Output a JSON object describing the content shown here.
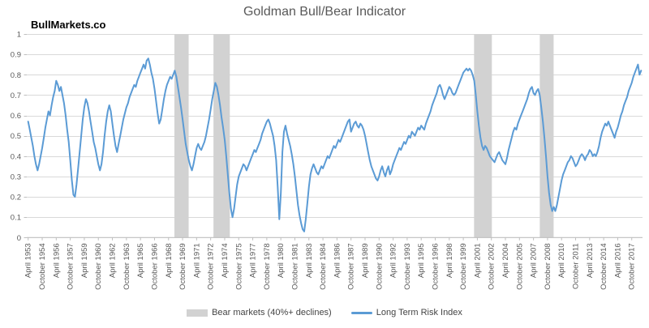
{
  "page": {
    "watermark": "BullMarkets.co"
  },
  "chart_data": {
    "type": "line",
    "title": "Goldman Bull/Bear Indicator",
    "xlabel": "",
    "ylabel": "",
    "ylim": [
      0,
      1
    ],
    "x_domain": [
      1953.1,
      2018.9
    ],
    "grid": "horizontal",
    "legend_position": "bottom",
    "colors": {
      "line": "#5B9BD5",
      "band": "#D2D2D2",
      "gridline": "#D9D9D9",
      "axis": "#BFBFBF",
      "tick_text": "#595959",
      "title_text": "#595959"
    },
    "y_tick_labels": [
      "1",
      "0.9",
      "0.8",
      "0.7",
      "0.6",
      "0.5",
      "0.4",
      "0.3",
      "0.2",
      "0.1",
      "0"
    ],
    "y_tick_values": [
      1,
      0.9,
      0.8,
      0.7,
      0.6,
      0.5,
      0.4,
      0.3,
      0.2,
      0.1,
      0
    ],
    "x_tick_start": 1953.25,
    "x_tick_step_years": 1.5,
    "x_tick_labels": [
      "April 1953",
      "October 1954",
      "April 1956",
      "October 1957",
      "April 1959",
      "October 1960",
      "April 1962",
      "October 1963",
      "April 1965",
      "October 1966",
      "April 1968",
      "October 1969",
      "April 1971",
      "October 1972",
      "April 1974",
      "October 1975",
      "April 1977",
      "October 1978",
      "April 1980",
      "October 1981",
      "April 1983",
      "October 1984",
      "April 1986",
      "October 1987",
      "April 1989",
      "October 1990",
      "April 1992",
      "October 1993",
      "April 1995",
      "October 1996",
      "April 1998",
      "October 1999",
      "April 2001",
      "October 2002",
      "April 2004",
      "October 2005",
      "April 2007",
      "October 2008",
      "April 2010",
      "October 2011",
      "April 2013",
      "October 2014",
      "April 2016",
      "October 2017"
    ],
    "bands": {
      "label": "Bear markets (40%+ declines)",
      "color": "#D2D2D2",
      "ranges": [
        [
          1968.88,
          1970.4
        ],
        [
          1973.05,
          1974.8
        ],
        [
          2000.9,
          2002.8
        ],
        [
          2007.92,
          2009.4
        ]
      ]
    },
    "series": [
      {
        "name": "Long Term Risk Index",
        "color": "#5B9BD5",
        "t_start": 1953.25,
        "t_step_years": 0.1666667,
        "values": [
          0.57,
          0.53,
          0.49,
          0.45,
          0.4,
          0.36,
          0.33,
          0.36,
          0.4,
          0.44,
          0.49,
          0.54,
          0.58,
          0.62,
          0.6,
          0.65,
          0.69,
          0.72,
          0.77,
          0.75,
          0.72,
          0.74,
          0.7,
          0.66,
          0.6,
          0.53,
          0.47,
          0.38,
          0.28,
          0.21,
          0.2,
          0.26,
          0.34,
          0.42,
          0.5,
          0.58,
          0.64,
          0.68,
          0.66,
          0.62,
          0.57,
          0.52,
          0.47,
          0.44,
          0.4,
          0.36,
          0.33,
          0.36,
          0.42,
          0.5,
          0.57,
          0.62,
          0.65,
          0.62,
          0.56,
          0.5,
          0.45,
          0.42,
          0.46,
          0.5,
          0.54,
          0.58,
          0.61,
          0.64,
          0.66,
          0.69,
          0.71,
          0.73,
          0.75,
          0.74,
          0.77,
          0.79,
          0.81,
          0.83,
          0.85,
          0.83,
          0.87,
          0.88,
          0.85,
          0.81,
          0.78,
          0.73,
          0.67,
          0.61,
          0.56,
          0.58,
          0.63,
          0.68,
          0.72,
          0.75,
          0.77,
          0.79,
          0.78,
          0.8,
          0.82,
          0.79,
          0.74,
          0.69,
          0.64,
          0.58,
          0.52,
          0.46,
          0.42,
          0.38,
          0.35,
          0.33,
          0.36,
          0.4,
          0.44,
          0.46,
          0.44,
          0.43,
          0.45,
          0.47,
          0.5,
          0.54,
          0.58,
          0.63,
          0.68,
          0.72,
          0.76,
          0.74,
          0.7,
          0.65,
          0.59,
          0.54,
          0.48,
          0.4,
          0.31,
          0.22,
          0.14,
          0.1,
          0.14,
          0.2,
          0.26,
          0.3,
          0.32,
          0.34,
          0.36,
          0.35,
          0.33,
          0.35,
          0.37,
          0.39,
          0.41,
          0.43,
          0.42,
          0.44,
          0.46,
          0.48,
          0.51,
          0.53,
          0.55,
          0.57,
          0.58,
          0.56,
          0.53,
          0.5,
          0.45,
          0.38,
          0.25,
          0.09,
          0.22,
          0.42,
          0.52,
          0.55,
          0.51,
          0.48,
          0.45,
          0.41,
          0.36,
          0.3,
          0.23,
          0.16,
          0.11,
          0.07,
          0.04,
          0.03,
          0.09,
          0.17,
          0.25,
          0.31,
          0.34,
          0.36,
          0.34,
          0.32,
          0.31,
          0.33,
          0.35,
          0.34,
          0.36,
          0.38,
          0.4,
          0.39,
          0.41,
          0.43,
          0.45,
          0.44,
          0.46,
          0.48,
          0.47,
          0.49,
          0.51,
          0.53,
          0.55,
          0.57,
          0.58,
          0.52,
          0.54,
          0.56,
          0.57,
          0.55,
          0.54,
          0.56,
          0.55,
          0.53,
          0.5,
          0.46,
          0.42,
          0.38,
          0.35,
          0.33,
          0.31,
          0.29,
          0.28,
          0.3,
          0.33,
          0.35,
          0.32,
          0.3,
          0.33,
          0.35,
          0.31,
          0.33,
          0.36,
          0.38,
          0.4,
          0.42,
          0.44,
          0.43,
          0.45,
          0.47,
          0.46,
          0.48,
          0.5,
          0.49,
          0.52,
          0.51,
          0.5,
          0.52,
          0.54,
          0.53,
          0.55,
          0.54,
          0.53,
          0.56,
          0.58,
          0.6,
          0.62,
          0.65,
          0.67,
          0.69,
          0.71,
          0.74,
          0.75,
          0.73,
          0.7,
          0.68,
          0.7,
          0.72,
          0.74,
          0.73,
          0.71,
          0.7,
          0.71,
          0.73,
          0.75,
          0.77,
          0.79,
          0.81,
          0.82,
          0.83,
          0.82,
          0.83,
          0.82,
          0.8,
          0.77,
          0.7,
          0.62,
          0.55,
          0.49,
          0.45,
          0.43,
          0.45,
          0.44,
          0.42,
          0.4,
          0.39,
          0.38,
          0.37,
          0.39,
          0.41,
          0.42,
          0.4,
          0.38,
          0.37,
          0.36,
          0.39,
          0.43,
          0.46,
          0.49,
          0.52,
          0.54,
          0.53,
          0.56,
          0.58,
          0.6,
          0.62,
          0.64,
          0.66,
          0.68,
          0.71,
          0.73,
          0.74,
          0.71,
          0.7,
          0.72,
          0.73,
          0.7,
          0.64,
          0.57,
          0.49,
          0.4,
          0.3,
          0.22,
          0.16,
          0.13,
          0.15,
          0.13,
          0.16,
          0.2,
          0.24,
          0.28,
          0.31,
          0.33,
          0.35,
          0.37,
          0.38,
          0.4,
          0.39,
          0.37,
          0.35,
          0.36,
          0.38,
          0.4,
          0.41,
          0.4,
          0.38,
          0.4,
          0.41,
          0.43,
          0.42,
          0.4,
          0.41,
          0.4,
          0.42,
          0.45,
          0.49,
          0.52,
          0.54,
          0.56,
          0.55,
          0.57,
          0.55,
          0.53,
          0.51,
          0.49,
          0.52,
          0.54,
          0.57,
          0.6,
          0.62,
          0.65,
          0.67,
          0.69,
          0.72,
          0.74,
          0.76,
          0.79,
          0.81,
          0.83,
          0.85,
          0.8,
          0.82
        ]
      }
    ]
  }
}
